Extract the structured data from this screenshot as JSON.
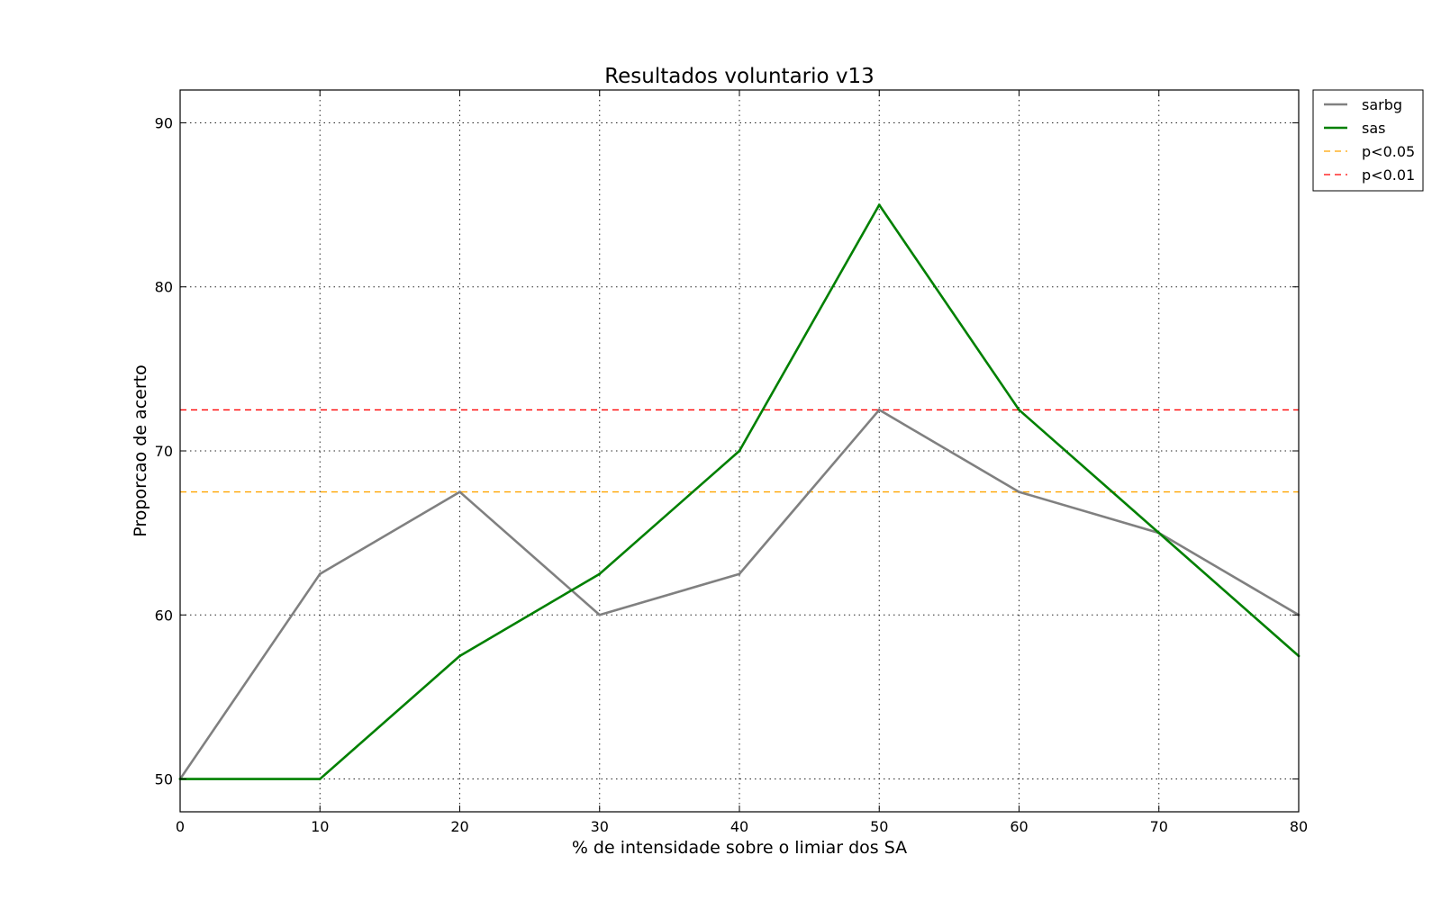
{
  "chart_data": {
    "type": "line",
    "title": "Resultados voluntario v13",
    "xlabel": "% de intensidade sobre o limiar dos SA",
    "ylabel": "Proporcao de acerto",
    "x": [
      0,
      10,
      20,
      30,
      40,
      50,
      60,
      70,
      80
    ],
    "xlim": [
      0,
      80
    ],
    "ylim": [
      48,
      92
    ],
    "x_ticks": [
      0,
      10,
      20,
      30,
      40,
      50,
      60,
      70,
      80
    ],
    "y_ticks": [
      50,
      60,
      70,
      80,
      90
    ],
    "grid": true,
    "legend_position": "outside-top-right",
    "series": [
      {
        "name": "sarbg",
        "color": "#808080",
        "style": "solid",
        "values": [
          50,
          62.5,
          67.5,
          60,
          62.5,
          72.5,
          67.5,
          65,
          60
        ]
      },
      {
        "name": "sas",
        "color": "#008000",
        "style": "solid",
        "values": [
          50,
          50,
          57.5,
          62.5,
          70,
          85,
          72.5,
          65,
          57.5
        ]
      }
    ],
    "reference_lines": [
      {
        "name": "p<0.05",
        "color": "#ffa500",
        "style": "dashed",
        "y": 67.5
      },
      {
        "name": "p<0.01",
        "color": "#ff0000",
        "style": "dashed",
        "y": 72.5
      }
    ]
  }
}
